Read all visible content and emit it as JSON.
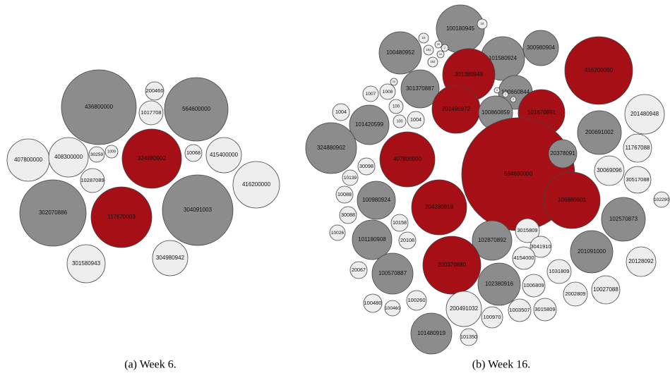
{
  "chart_data": [
    {
      "type": "bubble",
      "title": "(a) Week 6.",
      "labels": [
        "436800000",
        "564600000",
        "200460",
        "1017708",
        "407800000",
        "408300000",
        "30259",
        "1009",
        "324880902",
        "10068",
        "415400000",
        "416200000",
        "10287089",
        "302070886",
        "117670003",
        "304091003",
        "301580943",
        "304980942"
      ],
      "values": [
        53,
        45,
        13,
        17,
        30,
        28,
        11,
        9,
        42,
        12,
        25,
        33,
        17,
        47,
        43,
        50,
        27,
        25
      ],
      "colors": [
        "#8c8c8c",
        "#8c8c8c",
        "#eeeeee",
        "#eeeeee",
        "#eeeeee",
        "#eeeeee",
        "#eeeeee",
        "#eeeeee",
        "#a50f15",
        "#eeeeee",
        "#eeeeee",
        "#eeeeee",
        "#eeeeee",
        "#8c8c8c",
        "#a50f15",
        "#8c8c8c",
        "#eeeeee",
        "#eeeeee"
      ]
    },
    {
      "type": "bubble",
      "title": "(b) Week 16.",
      "labels": [
        "100180945",
        "10",
        "101580924",
        "300980904",
        "10",
        "101",
        "20",
        "2",
        "10",
        "102",
        "100480952",
        "301380949",
        "100660844",
        "416200000",
        "301370887",
        "10",
        "1007",
        "1008",
        "100",
        "100",
        "1004",
        "1004",
        "101420599",
        "201490972",
        "100860859",
        "101670891",
        "1",
        "1",
        "2",
        "1",
        "201480948",
        "200691002",
        "324880902",
        "407800000",
        "564600000",
        "20378091",
        "11767088",
        "30098",
        "10139",
        "10088",
        "30069096",
        "30517088",
        "100980924",
        "204280918",
        "106880901",
        "102290",
        "30088",
        "102570873",
        "10158",
        "10026",
        "101180908",
        "20108",
        "102870892",
        "3015809",
        "3041910",
        "4154000",
        "201091000",
        "20128092",
        "200370880",
        "100570887",
        "20067",
        "1031809",
        "102380916",
        "1006809",
        "2002809",
        "10027088",
        "100480",
        "100460",
        "100260",
        "200491032",
        "1003507",
        "3015809",
        "100970",
        "101480919",
        "101350"
      ],
      "values": [
        34,
        7,
        31,
        25,
        7,
        7,
        5,
        5,
        5,
        7,
        30,
        37,
        24,
        48,
        27,
        5,
        11,
        11,
        10,
        9,
        12,
        12,
        28,
        34,
        24,
        33,
        4,
        4,
        4,
        4,
        28,
        31,
        36,
        39,
        80,
        20,
        20,
        12,
        11,
        12,
        21,
        19,
        27,
        39,
        40,
        11,
        12,
        31,
        12,
        11,
        28,
        12,
        28,
        17,
        15,
        16,
        30,
        21,
        41,
        29,
        12,
        17,
        30,
        16,
        17,
        20,
        13,
        11,
        14,
        25,
        16,
        16,
        15,
        29,
        12
      ],
      "colors": [
        "#8c8c8c",
        "#eeeeee",
        "#8c8c8c",
        "#8c8c8c",
        "#eeeeee",
        "#eeeeee",
        "#eeeeee",
        "#eeeeee",
        "#eeeeee",
        "#eeeeee",
        "#8c8c8c",
        "#a50f15",
        "#8c8c8c",
        "#a50f15",
        "#8c8c8c",
        "#eeeeee",
        "#eeeeee",
        "#eeeeee",
        "#eeeeee",
        "#eeeeee",
        "#eeeeee",
        "#eeeeee",
        "#8c8c8c",
        "#a50f15",
        "#8c8c8c",
        "#a50f15",
        "#eeeeee",
        "#eeeeee",
        "#eeeeee",
        "#eeeeee",
        "#eeeeee",
        "#8c8c8c",
        "#8c8c8c",
        "#a50f15",
        "#a50f15",
        "#8c8c8c",
        "#eeeeee",
        "#eeeeee",
        "#eeeeee",
        "#eeeeee",
        "#eeeeee",
        "#eeeeee",
        "#8c8c8c",
        "#a50f15",
        "#a50f15",
        "#eeeeee",
        "#eeeeee",
        "#8c8c8c",
        "#eeeeee",
        "#eeeeee",
        "#8c8c8c",
        "#eeeeee",
        "#8c8c8c",
        "#eeeeee",
        "#eeeeee",
        "#eeeeee",
        "#8c8c8c",
        "#eeeeee",
        "#a50f15",
        "#8c8c8c",
        "#eeeeee",
        "#eeeeee",
        "#8c8c8c",
        "#eeeeee",
        "#eeeeee",
        "#eeeeee",
        "#eeeeee",
        "#eeeeee",
        "#eeeeee",
        "#eeeeee",
        "#eeeeee",
        "#eeeeee",
        "#eeeeee",
        "#8c8c8c",
        "#eeeeee"
      ]
    }
  ]
}
